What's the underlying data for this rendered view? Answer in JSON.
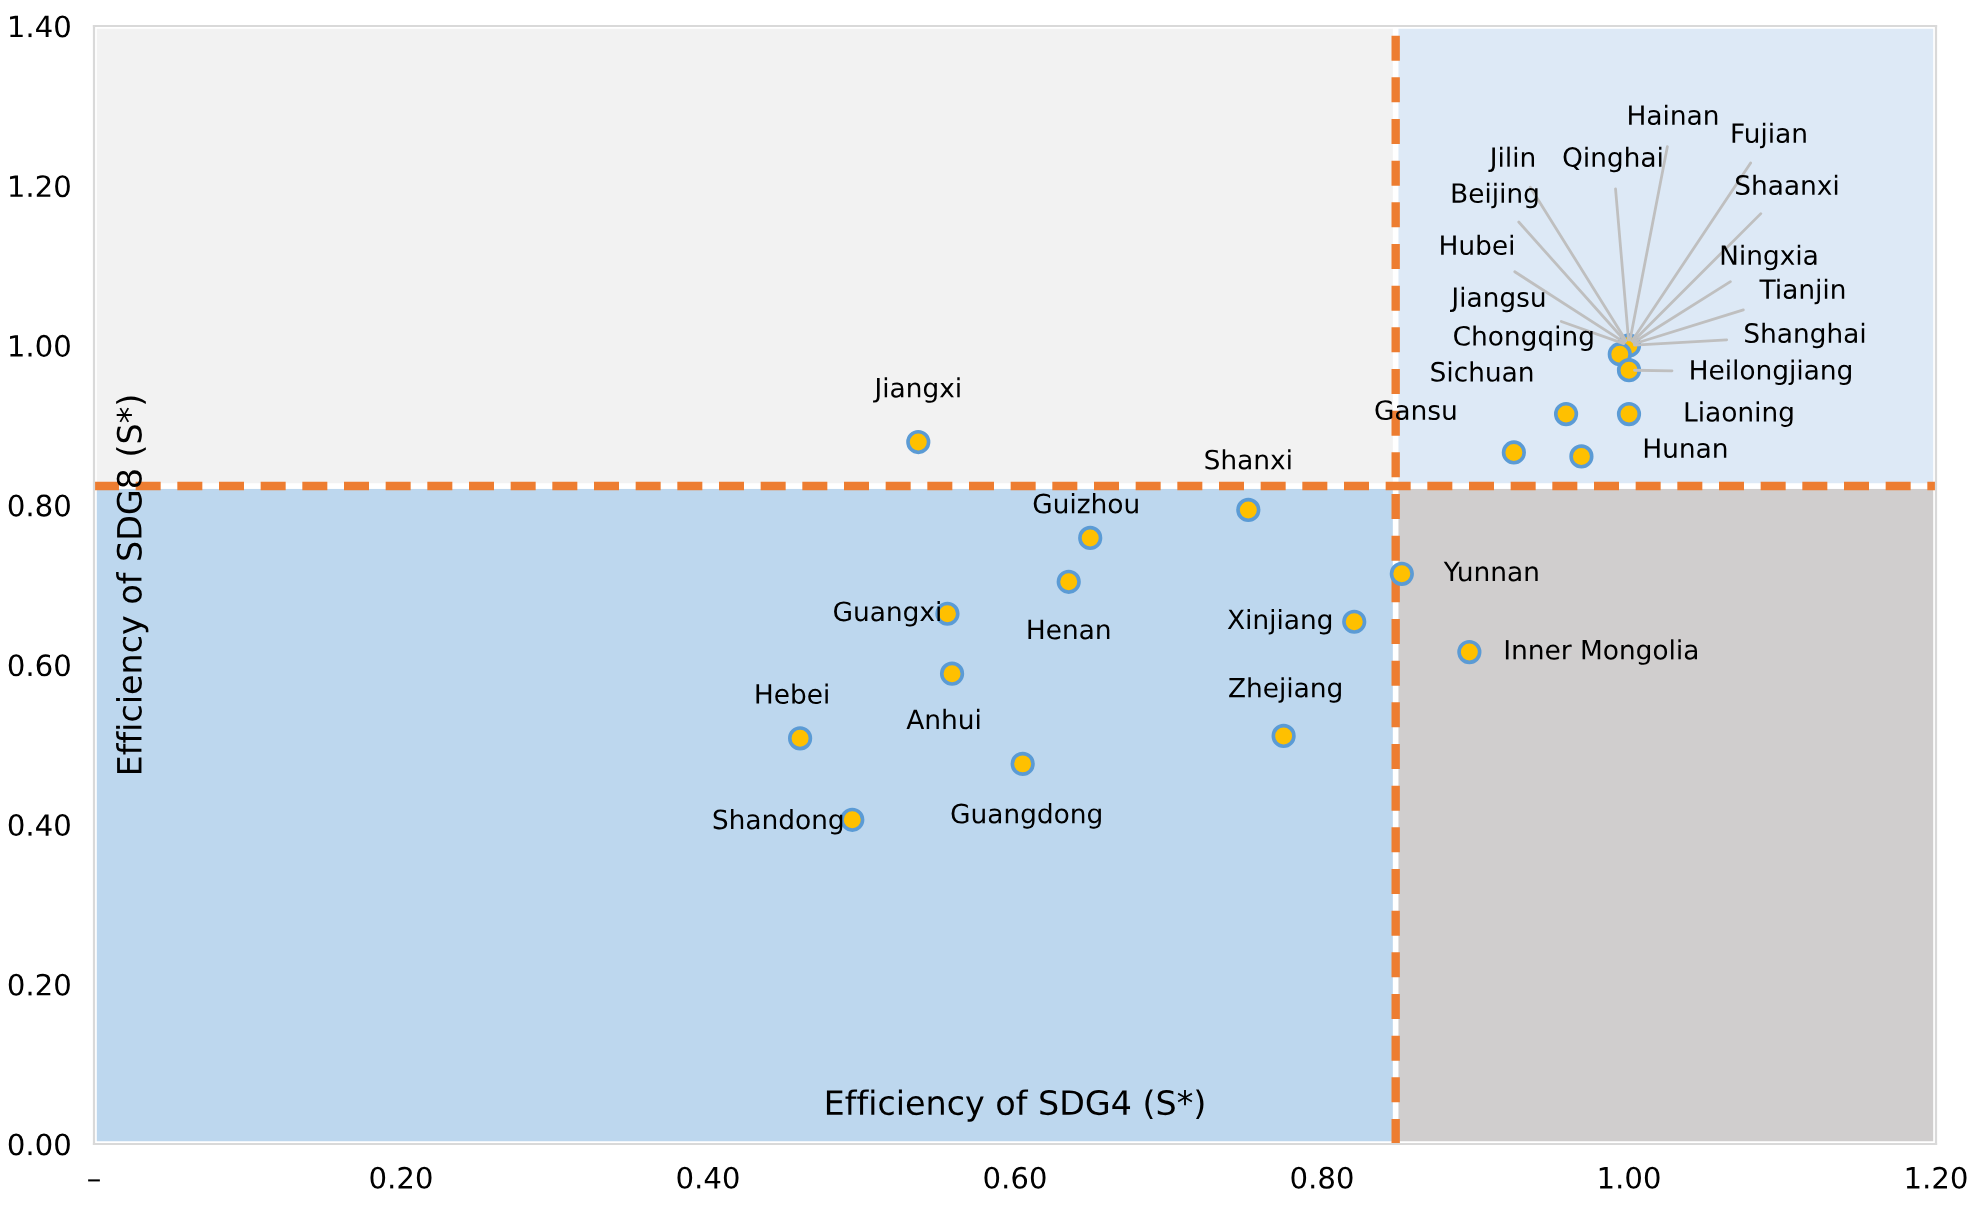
{
  "chart_data": {
    "type": "scatter",
    "xlabel": "Efficiency of SDG4 (S*)",
    "ylabel": "Efficiency of SDG8 (S*)",
    "x": [
      0.537,
      0.752,
      0.649,
      0.635,
      0.556,
      0.559,
      0.46,
      0.605,
      0.494,
      0.821,
      0.775,
      0.852,
      0.896,
      1.0,
      0.994,
      1.0,
      1.0,
      0.959,
      0.925,
      0.969
    ],
    "series": [
      {
        "color": "#ffc000",
        "values": [
          0.879,
          0.794,
          0.759,
          0.704,
          0.664,
          0.589,
          0.508,
          0.476,
          0.406,
          0.654,
          0.511,
          0.714,
          0.616,
          1.0,
          0.989,
          0.969,
          0.914,
          0.914,
          0.866,
          0.861
        ]
      }
    ],
    "marker": "circle",
    "xlim": [
      0,
      1.2
    ],
    "ylim": [
      0,
      1.4
    ],
    "xticks": [
      {
        "value": 0,
        "label": "–"
      },
      {
        "value": 0.2,
        "label": "0.20"
      },
      {
        "value": 0.4,
        "label": "0.40"
      },
      {
        "value": 0.6,
        "label": "0.60"
      },
      {
        "value": 0.8,
        "label": "0.80"
      },
      {
        "value": 1.0,
        "label": "1.00"
      },
      {
        "value": 1.2,
        "label": "1.20"
      }
    ],
    "yticks": [
      {
        "value": 0,
        "label": "0.00"
      },
      {
        "value": 0.2,
        "label": "0.20"
      },
      {
        "value": 0.4,
        "label": "0.40"
      },
      {
        "value": 0.6,
        "label": "0.60"
      },
      {
        "value": 0.8,
        "label": "0.80"
      },
      {
        "value": 1.0,
        "label": "1.00"
      },
      {
        "value": 1.2,
        "label": "1.20"
      },
      {
        "value": 1.4,
        "label": "1.40"
      }
    ],
    "ref_lines": [
      {
        "axis": "x",
        "value": 0.848,
        "color": "#ed7d31",
        "line_style": "dashed"
      },
      {
        "axis": "y",
        "value": 0.824,
        "color": "#ed7d31",
        "line_style": "dashed"
      }
    ],
    "grid": false,
    "legend": false,
    "annotations": [
      {
        "text": "Jiangxi",
        "x": 0.537,
        "y": 0.879
      },
      {
        "text": "Shanxi",
        "x": 0.752,
        "y": 0.794
      },
      {
        "text": "Guizhou",
        "x": 0.649,
        "y": 0.759
      },
      {
        "text": "Henan",
        "x": 0.635,
        "y": 0.704
      },
      {
        "text": "Guangxi",
        "x": 0.556,
        "y": 0.664
      },
      {
        "text": "Anhui",
        "x": 0.559,
        "y": 0.589
      },
      {
        "text": "Hebei",
        "x": 0.46,
        "y": 0.508
      },
      {
        "text": "Guangdong",
        "x": 0.605,
        "y": 0.476
      },
      {
        "text": "Shandong",
        "x": 0.494,
        "y": 0.406
      },
      {
        "text": "Xinjiang",
        "x": 0.821,
        "y": 0.654
      },
      {
        "text": "Zhejiang",
        "x": 0.775,
        "y": 0.511
      },
      {
        "text": "Yunnan",
        "x": 0.852,
        "y": 0.714
      },
      {
        "text": "Inner Mongolia",
        "x": 0.896,
        "y": 0.616
      },
      {
        "text": "Hainan",
        "x": 1.0,
        "y": 1.0
      },
      {
        "text": "Fujian",
        "x": 1.0,
        "y": 1.0
      },
      {
        "text": "Jilin",
        "x": 1.0,
        "y": 1.0
      },
      {
        "text": "Qinghai",
        "x": 1.0,
        "y": 1.0
      },
      {
        "text": "Beijing",
        "x": 1.0,
        "y": 1.0
      },
      {
        "text": "Shaanxi",
        "x": 1.0,
        "y": 1.0
      },
      {
        "text": "Hubei",
        "x": 1.0,
        "y": 1.0
      },
      {
        "text": "Ningxia",
        "x": 1.0,
        "y": 1.0
      },
      {
        "text": "Tianjin",
        "x": 1.0,
        "y": 1.0
      },
      {
        "text": "Jiangsu",
        "x": 1.0,
        "y": 1.0
      },
      {
        "text": "Shanghai",
        "x": 1.0,
        "y": 1.0
      },
      {
        "text": "Chongqing",
        "x": 0.994,
        "y": 0.989
      },
      {
        "text": "Heilongjiang",
        "x": 1.0,
        "y": 0.969
      },
      {
        "text": "Liaoning",
        "x": 1.0,
        "y": 0.914
      },
      {
        "text": "Sichuan",
        "x": 0.959,
        "y": 0.914
      },
      {
        "text": "Gansu",
        "x": 0.925,
        "y": 0.866
      },
      {
        "text": "Hunan",
        "x": 0.969,
        "y": 0.861
      }
    ]
  }
}
